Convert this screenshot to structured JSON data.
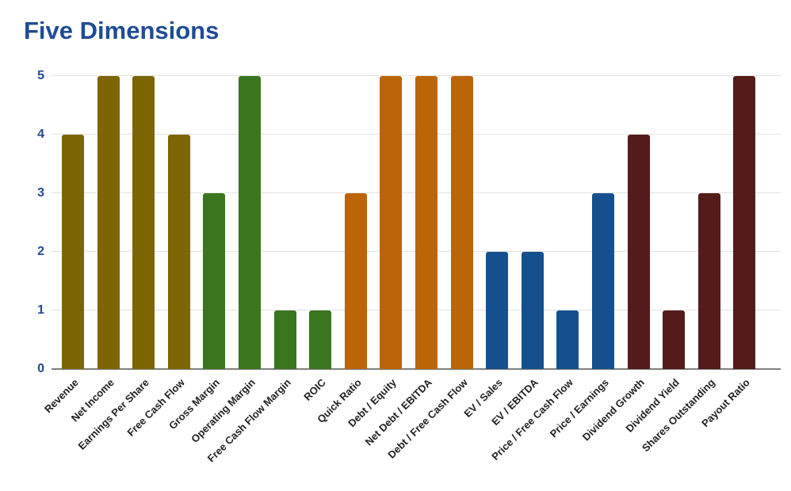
{
  "chart_data": {
    "type": "bar",
    "title": "Five Dimensions",
    "xlabel": "",
    "ylabel": "",
    "ylim": [
      0,
      5
    ],
    "yticks": [
      0,
      1,
      2,
      3,
      4,
      5
    ],
    "grid": "horizontal-light",
    "legend": "none",
    "categories": [
      "Revenue",
      "Net Income",
      "Earnings Per Share",
      "Free Cash Flow",
      "Gross Margin",
      "Operating Margin",
      "Free Cash Flow Margin",
      "ROIC",
      "Quick Ratio",
      "Debt / Equity",
      "Net Debt / EBITDA",
      "Debt / Free Cash Flow",
      "EV / Sales",
      "EV / EBITDA",
      "Price / Free Cash Flow",
      "Price / Earnings",
      "Dividend Growth",
      "Dividend Yield",
      "Shares Outstanding",
      "Payout Ratio"
    ],
    "values": [
      4,
      5,
      5,
      4,
      3,
      5,
      1,
      1,
      3,
      5,
      5,
      5,
      2,
      2,
      1,
      3,
      4,
      1,
      3,
      5
    ],
    "bar_colors": [
      "#7D6504",
      "#7D6504",
      "#7D6504",
      "#7D6504",
      "#3A761D",
      "#3A761D",
      "#3A761D",
      "#3A761D",
      "#BC6508",
      "#BC6508",
      "#BC6508",
      "#BC6508",
      "#15508E",
      "#15508E",
      "#15508E",
      "#15508E",
      "#531C1B",
      "#531C1B",
      "#531C1B",
      "#531C1B"
    ],
    "palette": [
      "#7D6504",
      "#3A761D",
      "#BC6508",
      "#15508E",
      "#531C1B"
    ],
    "bars_per_color_group": [
      4,
      4,
      4,
      4,
      4
    ]
  },
  "theme": {
    "title_color": "#1F4B96",
    "ytick_color": "#1F4B96",
    "xlabel_color": "#1F1F1F",
    "grid_color": "#E3E3E3",
    "axis_line_color": "#7F7F7F",
    "background": "#FFFFFF"
  }
}
